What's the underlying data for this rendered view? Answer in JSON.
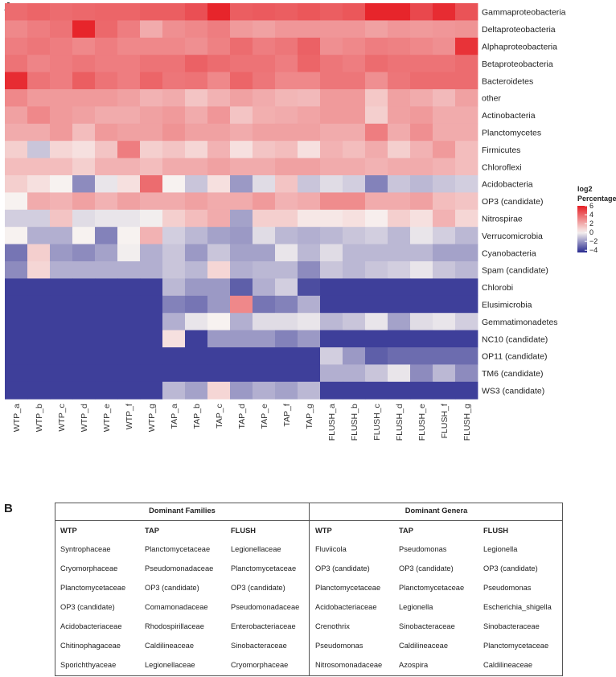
{
  "panels": {
    "a": "A",
    "b": "B"
  },
  "chart_data": {
    "type": "heatmap",
    "rows": [
      "Gammaproteobacteria",
      "Deltaproteobacteria",
      "Alphaproteobacteria",
      "Betaproteobacteria",
      "Bacteroidetes",
      "other",
      "Actinobacteria",
      "Planctomycetes",
      "Firmicutes",
      "Chloroflexi",
      "Acidobacteria",
      "OP3 (candidate)",
      "Nitrospirae",
      "Verrucomicrobia",
      "Cyanobacteria",
      "Spam (candidate)",
      "Chlorobi",
      "Elusimicrobia",
      "Gemmatimonadetes",
      "NC10 (candidate)",
      "OP11 (candidate)",
      "TM6 (candidate)",
      "WS3 (candidate)"
    ],
    "columns": [
      "WTP_a",
      "WTP_b",
      "WTP_c",
      "WTP_d",
      "WTP_e",
      "WTP_f",
      "WTP_g",
      "TAP_a",
      "TAP_b",
      "TAP_c",
      "TAP_d",
      "TAP_e",
      "TAP_f",
      "TAP_g",
      "FLUSH_a",
      "FLUSH_b",
      "FLUSH_c",
      "FLUSH_d",
      "FLUSH_e",
      "FLUSH_f",
      "FLUSH_g"
    ],
    "values": [
      [
        3.8,
        4.0,
        3.8,
        3.9,
        4.0,
        4.0,
        4.2,
        4.2,
        4.6,
        5.8,
        4.2,
        4.3,
        4.2,
        4.4,
        4.2,
        4.4,
        5.8,
        5.8,
        4.8,
        5.6,
        4.5
      ],
      [
        3.0,
        3.3,
        3.6,
        5.8,
        3.9,
        3.3,
        2.0,
        2.8,
        3.0,
        3.3,
        2.5,
        2.3,
        2.6,
        2.6,
        2.6,
        2.6,
        2.3,
        2.6,
        2.5,
        2.6,
        2.7
      ],
      [
        3.3,
        3.5,
        3.3,
        3.0,
        3.3,
        3.0,
        3.0,
        3.0,
        2.8,
        3.2,
        3.8,
        3.3,
        3.5,
        4.1,
        2.8,
        3.0,
        3.3,
        3.2,
        3.0,
        2.8,
        5.4
      ],
      [
        3.6,
        3.1,
        3.3,
        3.5,
        3.3,
        3.3,
        3.6,
        3.6,
        4.1,
        3.8,
        3.6,
        3.6,
        3.3,
        4.0,
        3.5,
        3.3,
        3.8,
        3.6,
        3.6,
        3.6,
        3.8
      ],
      [
        5.6,
        3.6,
        3.3,
        4.2,
        3.6,
        3.3,
        4.0,
        3.5,
        3.6,
        3.0,
        4.0,
        3.5,
        3.0,
        3.0,
        3.5,
        3.5,
        2.8,
        3.5,
        3.8,
        3.8,
        3.8
      ],
      [
        3.0,
        2.5,
        2.5,
        2.5,
        2.5,
        2.3,
        1.8,
        2.0,
        1.3,
        1.8,
        2.3,
        2.0,
        1.7,
        1.6,
        2.5,
        2.5,
        1.2,
        2.3,
        2.0,
        1.6,
        2.3
      ],
      [
        2.3,
        3.0,
        2.5,
        2.3,
        2.0,
        2.0,
        2.3,
        2.5,
        2.0,
        2.6,
        1.3,
        1.9,
        2.0,
        2.2,
        2.5,
        2.5,
        1.0,
        2.3,
        2.5,
        2.0,
        2.0
      ],
      [
        2.0,
        2.0,
        2.5,
        1.5,
        2.5,
        2.3,
        2.3,
        2.7,
        2.3,
        2.3,
        2.0,
        2.3,
        2.3,
        2.3,
        2.0,
        2.0,
        3.3,
        2.0,
        2.8,
        2.0,
        2.0
      ],
      [
        1.0,
        -1.0,
        0.8,
        0.5,
        1.3,
        3.3,
        1.0,
        1.3,
        0.8,
        1.8,
        0.5,
        1.3,
        1.5,
        0.5,
        1.8,
        1.5,
        2.0,
        1.0,
        1.8,
        2.5,
        1.5
      ],
      [
        1.5,
        1.5,
        1.5,
        1.0,
        1.8,
        1.8,
        1.5,
        2.0,
        2.0,
        2.3,
        2.0,
        2.0,
        2.3,
        2.3,
        2.0,
        2.0,
        1.8,
        2.0,
        2.0,
        1.8,
        1.5
      ],
      [
        1.0,
        0.5,
        0.0,
        -2.3,
        -0.3,
        0.5,
        3.8,
        0.0,
        -1.0,
        0.5,
        -2.0,
        -0.5,
        1.3,
        -1.0,
        -0.5,
        -0.8,
        -2.5,
        -1.0,
        -1.3,
        -1.0,
        -0.8
      ],
      [
        0.0,
        2.0,
        1.8,
        2.3,
        1.8,
        2.3,
        2.0,
        2.0,
        2.3,
        2.0,
        2.0,
        2.5,
        1.8,
        2.0,
        2.9,
        2.9,
        2.0,
        2.0,
        2.3,
        1.5,
        1.3
      ],
      [
        -0.8,
        -0.8,
        1.3,
        -0.5,
        -0.3,
        -0.3,
        -0.1,
        1.0,
        1.5,
        2.0,
        -1.8,
        1.0,
        1.0,
        0.3,
        0.3,
        0.5,
        0.1,
        1.0,
        0.5,
        1.8,
        0.8
      ],
      [
        0.0,
        -1.5,
        -1.5,
        0.0,
        -2.5,
        0.0,
        1.8,
        -0.8,
        -1.3,
        -1.8,
        -2.0,
        -0.5,
        -1.3,
        -1.5,
        -1.3,
        -1.0,
        -0.8,
        -1.3,
        -0.3,
        -0.8,
        -1.3
      ],
      [
        -2.8,
        1.0,
        -2.0,
        -2.3,
        -1.8,
        -0.1,
        -1.5,
        -1.0,
        -2.0,
        -1.0,
        -1.8,
        -1.8,
        -0.3,
        -1.3,
        -0.5,
        -1.3,
        -1.3,
        -1.3,
        -1.3,
        -1.8,
        -1.8
      ],
      [
        -2.3,
        0.8,
        -1.5,
        -1.5,
        -1.5,
        -1.5,
        -1.5,
        -1.0,
        -1.3,
        0.8,
        -1.5,
        -1.3,
        -1.3,
        -2.3,
        -1.0,
        -1.3,
        -1.0,
        -0.8,
        -0.3,
        -1.0,
        -1.3
      ],
      [
        -4.0,
        -4.0,
        -4.0,
        -4.0,
        -4.0,
        -4.0,
        -4.0,
        -1.3,
        -2.0,
        -2.0,
        -3.3,
        -1.5,
        -0.8,
        -3.7,
        -4.0,
        -4.0,
        -4.0,
        -4.0,
        -4.0,
        -4.0,
        -4.0
      ],
      [
        -4.0,
        -4.0,
        -4.0,
        -4.0,
        -4.0,
        -4.0,
        -4.0,
        -2.5,
        -2.8,
        -2.0,
        3.0,
        -2.8,
        -2.5,
        -1.5,
        -4.0,
        -4.0,
        -4.0,
        -4.0,
        -4.0,
        -4.0,
        -4.0
      ],
      [
        -4.0,
        -4.0,
        -4.0,
        -4.0,
        -4.0,
        -4.0,
        -4.0,
        -1.5,
        -0.3,
        0.0,
        -1.5,
        -0.5,
        -0.5,
        -0.3,
        -1.3,
        -1.0,
        -0.3,
        -1.8,
        -0.5,
        -0.3,
        -0.8
      ],
      [
        -4.0,
        -4.0,
        -4.0,
        -4.0,
        -4.0,
        -4.0,
        -4.0,
        0.5,
        -4.0,
        -2.0,
        -2.0,
        -2.0,
        -2.5,
        -2.0,
        -4.0,
        -4.0,
        -4.0,
        -4.0,
        -4.0,
        -4.0,
        -4.0
      ],
      [
        -4.0,
        -4.0,
        -4.0,
        -4.0,
        -4.0,
        -4.0,
        -4.0,
        -4.0,
        -4.0,
        -4.0,
        -4.0,
        -4.0,
        -4.0,
        -4.0,
        -0.8,
        -2.0,
        -3.3,
        -3.0,
        -3.0,
        -3.0,
        -3.0
      ],
      [
        -4.0,
        -4.0,
        -4.0,
        -4.0,
        -4.0,
        -4.0,
        -4.0,
        -4.0,
        -4.0,
        -4.0,
        -4.0,
        -4.0,
        -4.0,
        -4.0,
        -1.5,
        -1.5,
        -1.0,
        -0.3,
        -2.3,
        -1.3,
        -2.3
      ],
      [
        -4.0,
        -4.0,
        -4.0,
        -4.0,
        -4.0,
        -4.0,
        -4.0,
        -1.3,
        -1.8,
        0.8,
        -2.0,
        -1.5,
        -1.8,
        -1.3,
        -4.0,
        -4.0,
        -4.0,
        -4.0,
        -4.0,
        -4.0,
        -4.0
      ]
    ],
    "color_range": [
      -4.5,
      6
    ],
    "colors": {
      "low": "#27298f",
      "mid": "#f7f2f0",
      "high": "#e61e24"
    },
    "legend": {
      "title_line1": "log2",
      "title_line2": "Percentage",
      "ticks": [
        6,
        4,
        2,
        0,
        -2,
        -4
      ],
      "tick_labels": [
        "6",
        "4",
        "2",
        "0",
        "−2",
        "−4"
      ]
    }
  },
  "table_b": {
    "families_title": "Dominant Families",
    "genera_title": "Dominant Genera",
    "sub_headers": [
      "WTP",
      "TAP",
      "FLUSH"
    ],
    "families": {
      "WTP": [
        "Syntrophaceae",
        "Cryomorphaceae",
        "Planctomycetaceae",
        "OP3 (candidate)",
        "Acidobacteriaceae",
        "Chitinophagaceae",
        "Sporichthyaceae"
      ],
      "TAP": [
        "Planctomycetaceae",
        "Pseudomonadaceae",
        "OP3 (candidate)",
        "Comamonadaceae",
        "Rhodospirillaceae",
        "Caldilineaceae",
        "Legionellaceae"
      ],
      "FLUSH": [
        "Legionellaceae",
        "Planctomycetaceae",
        "OP3 (candidate)",
        "Pseudomonadaceae",
        "Enterobacteriaceae",
        "Sinobacteraceae",
        "Cryomorphaceae"
      ]
    },
    "genera": {
      "WTP": [
        "Fluviicola",
        "OP3 (candidate)",
        "Planctomycetaceae",
        "Acidobacteriaceae",
        "Crenothrix",
        "Pseudomonas",
        "Nitrosomonadaceae"
      ],
      "TAP": [
        "Pseudomonas",
        "OP3 (candidate)",
        "Planctomycetaceae",
        "Legionella",
        "Sinobacteraceae",
        "Caldilineaceae",
        "Azospira"
      ],
      "FLUSH": [
        "Legionella",
        "OP3 (candidate)",
        "Pseudomonas",
        "Escherichia_shigella",
        "Sinobacteraceae",
        "Planctomycetaceae",
        "Caldilineaceae"
      ]
    }
  }
}
